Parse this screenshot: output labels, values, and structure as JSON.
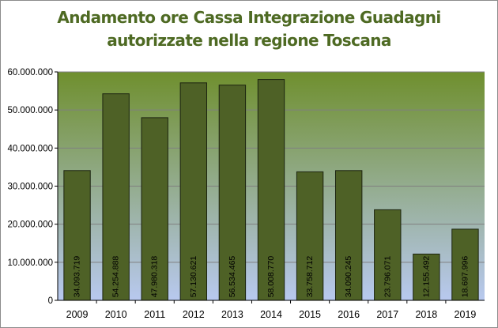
{
  "chart_data": {
    "type": "bar",
    "title": "Andamento ore Cassa Integrazione Guadagni\nautorizzate nella regione Toscana",
    "categories": [
      "2009",
      "2010",
      "2011",
      "2012",
      "2013",
      "2014",
      "2015",
      "2016",
      "2017",
      "2018",
      "2019"
    ],
    "values": [
      34093719,
      54254888,
      47980318,
      57130621,
      56534465,
      58008770,
      33758712,
      34090245,
      23796071,
      12155492,
      18697996
    ],
    "value_labels": [
      "34.093.719",
      "54.254.888",
      "47.980.318",
      "57.130.621",
      "56.534.465",
      "58.008.770",
      "33.758.712",
      "34.090.245",
      "23.796.071",
      "12.155.492",
      "18.697.996"
    ],
    "ylim": [
      0,
      60000000
    ],
    "yticks": [
      0,
      10000000,
      20000000,
      30000000,
      40000000,
      50000000,
      60000000
    ],
    "ytick_labels": [
      "0",
      "10.000.000",
      "20.000.000",
      "30.000.000",
      "40.000.000",
      "50.000.000",
      "60.000.000"
    ],
    "grid": true,
    "legend": "none",
    "colors": {
      "bar_fill": "#4e6126",
      "bar_stroke": "#1c2410",
      "plot_top": "#6f8f2e",
      "plot_bottom": "#b8c9ef",
      "title": "#4e6a23",
      "gridline": "#7f7f7f"
    }
  }
}
